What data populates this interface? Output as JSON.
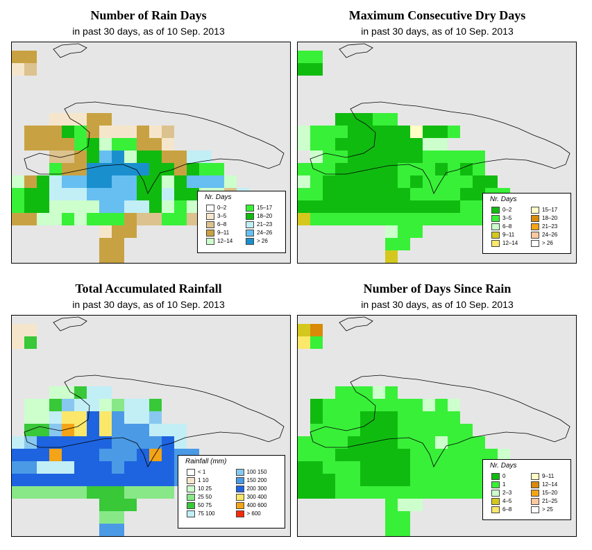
{
  "panels": [
    {
      "title": "Number of Rain Days",
      "subtitle": "in past 30 days, as of  10 Sep. 2013",
      "legend_title": "Nr. Days",
      "legend": [
        {
          "label": "0–2",
          "color": "#ffffff"
        },
        {
          "label": "3–5",
          "color": "#f5e6cb"
        },
        {
          "label": "6–8",
          "color": "#dcc28e"
        },
        {
          "label": "9–11",
          "color": "#c8a242"
        },
        {
          "label": "12–14",
          "color": "#ccffcc"
        },
        {
          "label": "15–17",
          "color": "#38f038"
        },
        {
          "label": "18–20",
          "color": "#10bb10"
        },
        {
          "label": "21–23",
          "color": "#c2eef6"
        },
        {
          "label": "24–26",
          "color": "#66bff0"
        },
        {
          "label": "> 26",
          "color": "#1a8fce"
        }
      ]
    },
    {
      "title": "Maximum Consecutive Dry Days",
      "subtitle": "in past 30 days, as of  10 Sep. 2013",
      "legend_title": "Nr. Days",
      "legend": [
        {
          "label": "0–2",
          "color": "#10bb10"
        },
        {
          "label": "3–5",
          "color": "#38f038"
        },
        {
          "label": "6–8",
          "color": "#ccffcc"
        },
        {
          "label": "9–11",
          "color": "#d4c81e"
        },
        {
          "label": "12–14",
          "color": "#fbe86a"
        },
        {
          "label": "15–17",
          "color": "#fffcc6"
        },
        {
          "label": "18–20",
          "color": "#d88a08"
        },
        {
          "label": "21–23",
          "color": "#f4a416"
        },
        {
          "label": "24–26",
          "color": "#fcc8a0"
        },
        {
          "label": "> 26",
          "color": "#ffffff"
        }
      ]
    },
    {
      "title": "Total Accumulated Rainfall",
      "subtitle": "in past 30 days, as of  10 Sep. 2013",
      "legend_title": "Rainfall (mm)",
      "legend": [
        {
          "label": "< 1",
          "color": "#ffffff"
        },
        {
          "label": "1   10",
          "color": "#f5e6cb"
        },
        {
          "label": "10   25",
          "color": "#ccffcc"
        },
        {
          "label": "25   50",
          "color": "#88e888"
        },
        {
          "label": "50   75",
          "color": "#38c838"
        },
        {
          "label": "75   100",
          "color": "#c2eef6"
        },
        {
          "label": "100   150",
          "color": "#88c8f0"
        },
        {
          "label": "150   200",
          "color": "#4a9ae6"
        },
        {
          "label": "200   300",
          "color": "#1e64e0"
        },
        {
          "label": "300   400",
          "color": "#fbe86a"
        },
        {
          "label": "400   600",
          "color": "#f4a416"
        },
        {
          "label": "> 600",
          "color": "#f82a0a"
        }
      ]
    },
    {
      "title": "Number of Days Since Rain",
      "subtitle": "in past 30 days, as of  10 Sep. 2013",
      "legend_title": "Nr. Days",
      "legend": [
        {
          "label": "0",
          "color": "#10bb10"
        },
        {
          "label": "1",
          "color": "#38f038"
        },
        {
          "label": "2–3",
          "color": "#ccffcc"
        },
        {
          "label": "4–5",
          "color": "#d4c81e"
        },
        {
          "label": "6–8",
          "color": "#fbe86a"
        },
        {
          "label": "9–11",
          "color": "#fffcc6"
        },
        {
          "label": "12–14",
          "color": "#d88a08"
        },
        {
          "label": "15–20",
          "color": "#f4a416"
        },
        {
          "label": "21–25",
          "color": "#fcc8a0"
        },
        {
          "label": "> 25",
          "color": "#ffffff"
        }
      ]
    }
  ],
  "map_grids": [
    [
      "......................",
      "...cc..................",
      "...Dd..................",
      "b..........................",
      "cbb........................",
      "cc.........................",
      "......bbbcc................",
      "....cccfecbbbcbd...........",
      "....ccccefgeeccb...........",
      "......ddcfijgffcchh........",
      "......eccjjjjjffcfee.......",
      "..fgcfhiijjiiffgfiiig......",
      "..feffhhhiiiiffhffggdh.....",
      "..eeffggggiihhfgegghcc.....",
      "...ccggegeeecddeedeeee.....",
      "..........bcc..............",
      "..........cc...............",
      "..........cc..............."
    ],
    [
      "......................",
      "...ee..................",
      "...fg..................",
      "a..........................",
      "cd.........................",
      "ed.........................",
      "......gffee................",
      "...ceeegffffbffe...........",
      "...ceeffgggffcc............",
      "....ceefgggffeeeee.........",
      "...eeegggffeeefefe.........",
      "..ecegggggfefeeeeff........",
      "..eeeffgggggeeeeffee.......",
      "..efgggggfgfgfggeeeef......",
      "...deeeeeeeeeeeeeee........",
      "..........cee..............",
      "..........ee...............",
      "..........d................"
    ],
    [
      "......................",
      "...bb..................",
      "...bd..................",
      "b..........................",
      "hcc........................",
      "ec.........................",
      "......ccdff................",
      "....ccdghfcefhd............",
      "....cchlljlihhg............",
      "....ddgkljliiihhh..........",
      "...fgjjjjjjiiiijf..........",
      "..jjjjkjjjiiijkjii.........",
      "..iiihhhjjjijjjjijj........",
      "..jjjjjjjjjjjjjjiij........",
      "...eeeeeedddeeee...........",
      "..........ddd..............",
      "..........ee...............",
      "..........ii..............."
    ],
    [
      "......................",
      "...dg..................",
      "...eh..................",
      "a..........................",
      "ab.........................",
      "ba.........................",
      "......bbbcb................",
      "....abbbbbbbbcbc...........",
      "....abbbaaabbbbb...........",
      "....bbbbaaabbbbbb..........",
      "...bbbbaaaabbbcbbb.........",
      "..abbbaaaaaabbbbbbbc.......",
      "..aaabbbaaaabbbbbbcc.......",
      "..aaaabbaaaabbbbbbbb.......",
      "...aaabbbbbbbbbbbb.........",
      "..........bcc..............",
      "..........bb...............",
      "..........bb..............."
    ]
  ],
  "grid_palettes": [
    {
      "a": "#ffffff",
      "b": "#f5e6cb",
      "c": "#c8a242",
      "d": "#dcc28e",
      "e": "#38f038",
      "f": "#10bb10",
      "g": "#ccffcc",
      "h": "#c2eef6",
      "i": "#66bff0",
      "j": "#1a8fce",
      "D": "#f5e6cb"
    },
    {
      "a": "#10bb10",
      "b": "#fffcc6",
      "c": "#ccffcc",
      "d": "#d4c81e",
      "e": "#38f038",
      "f": "#10bb10",
      "g": "#10bb10",
      "h": "#fbe86a"
    },
    {
      "a": "#ffffff",
      "b": "#f5e6cb",
      "c": "#ccffcc",
      "d": "#38c838",
      "e": "#88e888",
      "f": "#c2eef6",
      "g": "#88c8f0",
      "h": "#c2eef6",
      "i": "#4a9ae6",
      "j": "#1e64e0",
      "k": "#f4a416",
      "l": "#fbe86a"
    },
    {
      "a": "#10bb10",
      "b": "#38f038",
      "c": "#ccffcc",
      "d": "#d4c81e",
      "e": "#fbe86a",
      "g": "#d88a08",
      "h": "#38f038"
    }
  ]
}
